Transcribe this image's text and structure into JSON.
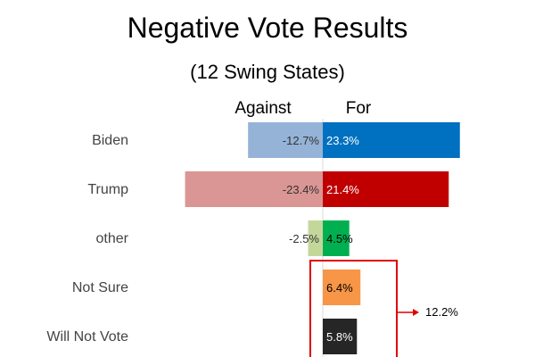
{
  "chart_data": {
    "type": "bar",
    "orientation": "horizontal-diverging",
    "title": "Negative Vote Results",
    "subtitle": "(12 Swing States)",
    "column_headers": {
      "against": "Against",
      "for": "For"
    },
    "categories": [
      "Biden",
      "Trump",
      "other",
      "Not Sure",
      "Will Not Vote"
    ],
    "series": [
      {
        "name": "Against",
        "values": [
          -12.7,
          -23.4,
          -2.5,
          null,
          null
        ]
      },
      {
        "name": "For",
        "values": [
          23.3,
          21.4,
          4.5,
          6.4,
          5.8
        ]
      }
    ],
    "labels": {
      "against": [
        "-12.7%",
        "-23.4%",
        "-2.5%",
        "",
        ""
      ],
      "for": [
        "23.3%",
        "21.4%",
        "4.5%",
        "6.4%",
        "5.8%"
      ]
    },
    "colors": {
      "for": [
        "#0070c0",
        "#c00000",
        "#00b050",
        "#f79646",
        "#262626"
      ],
      "against": [
        "#95b3d7",
        "#da9694",
        "#c4d79b",
        "",
        ""
      ],
      "for_label": [
        "#ffffff",
        "#ffffff",
        "#000000",
        "#000000",
        "#ffffff"
      ],
      "against_label": "#333333",
      "callout": "#e00000"
    },
    "callout": {
      "text": "12.2%",
      "categories": [
        "Not Sure",
        "Will Not Vote"
      ]
    },
    "grid": false,
    "legend": "none"
  }
}
